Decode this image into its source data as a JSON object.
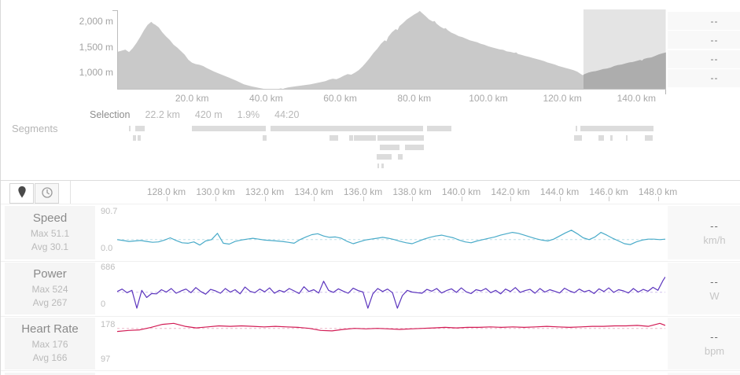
{
  "selection_bar": {
    "label": "Selection",
    "distance": "22.2 km",
    "elevation_gain": "420 m",
    "grade": "1.9%",
    "duration": "44:20"
  },
  "segments": {
    "label": "Segments",
    "rows": [
      [
        [
          163,
          2
        ],
        [
          171,
          12
        ],
        [
          243,
          94
        ],
        [
          343,
          194
        ],
        [
          542,
          31
        ],
        [
          731,
          2
        ],
        [
          737,
          93
        ]
      ],
      [
        [
          168,
          4
        ],
        [
          174,
          4
        ],
        [
          333,
          5
        ],
        [
          418,
          11
        ],
        [
          443,
          5
        ],
        [
          449,
          28
        ],
        [
          479,
          59
        ],
        [
          729,
          10
        ],
        [
          760,
          7
        ],
        [
          775,
          3
        ],
        [
          795,
          2
        ],
        [
          819,
          10
        ]
      ],
      [
        [
          482,
          25
        ],
        [
          514,
          24
        ]
      ],
      [
        [
          478,
          19
        ],
        [
          505,
          6
        ]
      ],
      [
        [
          479,
          2
        ],
        [
          484,
          3
        ]
      ]
    ]
  },
  "overview_panel": {
    "values": [
      "--",
      "--",
      "--",
      "--"
    ]
  },
  "toolbar": {
    "distance_button_icon": "map-pin-icon",
    "time_button_icon": "clock-icon"
  },
  "detail_axis": {
    "x_domain": [
      126,
      148.3
    ],
    "tick_km": [
      128,
      130,
      132,
      134,
      136,
      138,
      140,
      142,
      144,
      146,
      148
    ],
    "tick_labels": [
      "128.0 km",
      "130.0 km",
      "132.0 km",
      "134.0 km",
      "136.0 km",
      "138.0 km",
      "140.0 km",
      "142.0 km",
      "144.0 km",
      "146.0 km",
      "148.0 km"
    ]
  },
  "colors": {
    "speed": "#49abc9",
    "speed_avg": "#bfe0ea",
    "power": "#5b34bd",
    "power_avg": "#cfc0ec",
    "heart_rate": "#d21c55",
    "heart_rate_avg": "#eeb6c8",
    "elevation_fill": "#c9c9c9",
    "elevation_fill_selected": "#adadad",
    "selection_bg": "#e4e4e4"
  },
  "chart_data": [
    {
      "type": "area",
      "id": "elevation",
      "x_domain": [
        0,
        148
      ],
      "y_domain_m": [
        615,
        2215
      ],
      "selection_km": [
        125.7,
        147.9
      ],
      "x_tick_km": [
        20,
        40,
        60,
        80,
        100,
        120,
        140
      ],
      "x_tick_labels": [
        "20.0 km",
        "40.0 km",
        "60.0 km",
        "80.0 km",
        "100.0 km",
        "120.0 km",
        "140.0 km"
      ],
      "y_tick_labels": [
        "2,000 m",
        "1,500 m",
        "1,000 m"
      ],
      "y_tick_m": [
        2000,
        1500,
        1000
      ],
      "points": [
        [
          0,
          1350
        ],
        [
          2,
          1390
        ],
        [
          3,
          1340
        ],
        [
          4,
          1420
        ],
        [
          5,
          1520
        ],
        [
          6,
          1640
        ],
        [
          7,
          1770
        ],
        [
          8,
          1880
        ],
        [
          9,
          1940
        ],
        [
          9.5,
          1905
        ],
        [
          10,
          1885
        ],
        [
          11,
          1830
        ],
        [
          12,
          1730
        ],
        [
          13,
          1650
        ],
        [
          14,
          1580
        ],
        [
          15,
          1490
        ],
        [
          16,
          1430
        ],
        [
          17,
          1360
        ],
        [
          18,
          1290
        ],
        [
          19,
          1190
        ],
        [
          20,
          1130
        ],
        [
          21,
          1105
        ],
        [
          22,
          1090
        ],
        [
          23,
          1065
        ],
        [
          24,
          1025
        ],
        [
          26,
          955
        ],
        [
          28,
          895
        ],
        [
          30,
          835
        ],
        [
          32,
          775
        ],
        [
          34,
          705
        ],
        [
          36,
          665
        ],
        [
          38,
          635
        ],
        [
          40,
          605
        ],
        [
          42,
          585
        ],
        [
          43,
          605
        ],
        [
          44,
          625
        ],
        [
          44.5,
          612
        ],
        [
          45,
          628
        ],
        [
          46,
          645
        ],
        [
          48,
          665
        ],
        [
          50,
          685
        ],
        [
          52,
          705
        ],
        [
          54,
          735
        ],
        [
          56,
          765
        ],
        [
          57,
          795
        ],
        [
          58,
          815
        ],
        [
          59,
          805
        ],
        [
          60,
          835
        ],
        [
          61,
          875
        ],
        [
          62,
          905
        ],
        [
          63,
          895
        ],
        [
          64,
          935
        ],
        [
          65,
          985
        ],
        [
          66,
          1055
        ],
        [
          67,
          1135
        ],
        [
          68,
          1225
        ],
        [
          69,
          1325
        ],
        [
          70,
          1405
        ],
        [
          71,
          1505
        ],
        [
          72,
          1575
        ],
        [
          72.5,
          1555
        ],
        [
          73,
          1645
        ],
        [
          74,
          1735
        ],
        [
          75,
          1795
        ],
        [
          75.5,
          1775
        ],
        [
          76,
          1855
        ],
        [
          77,
          1915
        ],
        [
          78,
          1985
        ],
        [
          79,
          2035
        ],
        [
          80,
          2085
        ],
        [
          81,
          2125
        ],
        [
          81.5,
          2155
        ],
        [
          82,
          2120
        ],
        [
          83,
          2055
        ],
        [
          84,
          1985
        ],
        [
          85,
          1945
        ],
        [
          85.5,
          1955
        ],
        [
          86,
          1905
        ],
        [
          87,
          1845
        ],
        [
          88,
          1805
        ],
        [
          88.5,
          1815
        ],
        [
          89,
          1775
        ],
        [
          90,
          1725
        ],
        [
          91,
          1695
        ],
        [
          92,
          1655
        ],
        [
          93,
          1635
        ],
        [
          94,
          1605
        ],
        [
          95,
          1575
        ],
        [
          96,
          1555
        ],
        [
          97,
          1535
        ],
        [
          98,
          1505
        ],
        [
          99,
          1485
        ],
        [
          100,
          1455
        ],
        [
          101,
          1435
        ],
        [
          102,
          1415
        ],
        [
          103,
          1395
        ],
        [
          104,
          1385
        ],
        [
          105,
          1355
        ],
        [
          106,
          1345
        ],
        [
          107,
          1325
        ],
        [
          107.5,
          1335
        ],
        [
          108,
          1305
        ],
        [
          109,
          1285
        ],
        [
          110,
          1265
        ],
        [
          111,
          1245
        ],
        [
          112,
          1225
        ],
        [
          113,
          1205
        ],
        [
          114,
          1185
        ],
        [
          115,
          1165
        ],
        [
          116,
          1135
        ],
        [
          117,
          1115
        ],
        [
          118,
          1095
        ],
        [
          119,
          1065
        ],
        [
          120,
          1045
        ],
        [
          121,
          1025
        ],
        [
          122,
          1005
        ],
        [
          123,
          985
        ],
        [
          124,
          955
        ],
        [
          125,
          905
        ],
        [
          125.5,
          885
        ],
        [
          126,
          905
        ],
        [
          127,
          935
        ],
        [
          128,
          955
        ],
        [
          129,
          965
        ],
        [
          130,
          985
        ],
        [
          131,
          1005
        ],
        [
          132,
          1015
        ],
        [
          133,
          1035
        ],
        [
          134,
          1065
        ],
        [
          135,
          1085
        ],
        [
          136,
          1095
        ],
        [
          137,
          1115
        ],
        [
          138,
          1135
        ],
        [
          139,
          1145
        ],
        [
          140,
          1165
        ],
        [
          141,
          1185
        ],
        [
          141.5,
          1172
        ],
        [
          142,
          1205
        ],
        [
          143,
          1225
        ],
        [
          144,
          1235
        ],
        [
          145,
          1265
        ],
        [
          146,
          1295
        ],
        [
          147,
          1315
        ],
        [
          148,
          1335
        ]
      ]
    },
    {
      "type": "line",
      "id": "speed",
      "title": "Speed",
      "max_label": "Max 51.1",
      "avg_label": "Avg 30.1",
      "value_display": "--",
      "unit": "km/h",
      "y_axis_top": "90.7",
      "y_axis_bottom": "0.0",
      "y_domain": [
        0,
        90.7
      ],
      "avg": 30.1,
      "max": 51.1,
      "x_start": 126.0,
      "x_step": 0.24,
      "values": [
        30,
        28,
        26,
        27,
        28,
        26,
        24,
        25,
        29,
        34,
        28,
        23,
        22,
        25,
        18,
        27,
        30,
        44,
        22,
        20,
        26,
        29,
        31,
        33,
        31,
        29,
        28,
        27,
        26,
        24,
        22,
        30,
        36,
        41,
        43,
        38,
        35,
        36,
        33,
        26,
        21,
        25,
        29,
        31,
        33,
        35,
        33,
        30,
        26,
        23,
        21,
        26,
        31,
        35,
        38,
        40,
        37,
        34,
        29,
        25,
        23,
        27,
        30,
        33,
        36,
        40,
        43,
        46,
        44,
        40,
        36,
        32,
        29,
        27,
        31,
        38,
        45,
        51,
        43,
        34,
        30,
        36,
        46,
        40,
        33,
        27,
        21,
        19,
        25,
        29,
        31,
        31,
        30,
        31
      ]
    },
    {
      "type": "line",
      "id": "power",
      "title": "Power",
      "max_label": "Max 524",
      "avg_label": "Avg 267",
      "value_display": "--",
      "unit": "W",
      "y_axis_top": "686",
      "y_axis_bottom": "0",
      "y_domain": [
        0,
        686
      ],
      "avg": 267,
      "max": 524,
      "x_start": 126.0,
      "x_step": 0.2,
      "values": [
        280,
        320,
        260,
        300,
        0,
        300,
        180,
        245,
        240,
        310,
        270,
        330,
        250,
        290,
        320,
        260,
        345,
        280,
        235,
        315,
        290,
        250,
        330,
        270,
        310,
        240,
        355,
        285,
        260,
        320,
        275,
        340,
        250,
        300,
        270,
        330,
        290,
        245,
        360,
        280,
        310,
        255,
        452,
        300,
        265,
        325,
        285,
        250,
        335,
        295,
        270,
        0,
        240,
        330,
        280,
        320,
        260,
        0,
        210,
        300,
        270,
        260,
        250,
        315,
        285,
        330,
        255,
        295,
        325,
        265,
        340,
        275,
        245,
        310,
        290,
        330,
        260,
        300,
        240,
        320,
        280,
        345,
        265,
        295,
        315,
        250,
        330,
        270,
        310,
        285,
        255,
        335,
        290,
        260,
        320,
        275,
        300,
        245,
        325,
        280,
        340,
        265,
        310,
        290,
        255,
        330,
        270,
        315,
        285,
        350,
        300,
        460,
        524
      ]
    },
    {
      "type": "line",
      "id": "heart_rate",
      "title": "Heart Rate",
      "max_label": "Max 176",
      "avg_label": "Avg 166",
      "value_display": "--",
      "unit": "bpm",
      "y_axis_top": "178",
      "y_axis_bottom": "97",
      "y_domain": [
        97,
        178
      ],
      "avg": 166,
      "max": 176,
      "x_start": 126.0,
      "x_step": 0.46,
      "values": [
        160,
        162,
        163,
        168,
        174,
        176,
        170,
        167,
        169,
        171,
        170,
        171,
        170,
        169,
        170,
        169,
        168,
        166,
        162,
        161,
        164,
        166,
        165,
        166,
        165,
        164,
        165,
        166,
        167,
        168,
        167,
        168,
        168,
        169,
        168,
        169,
        168,
        169,
        170,
        169,
        168,
        169,
        170,
        170,
        171,
        171,
        172,
        170,
        176,
        172
      ]
    }
  ]
}
